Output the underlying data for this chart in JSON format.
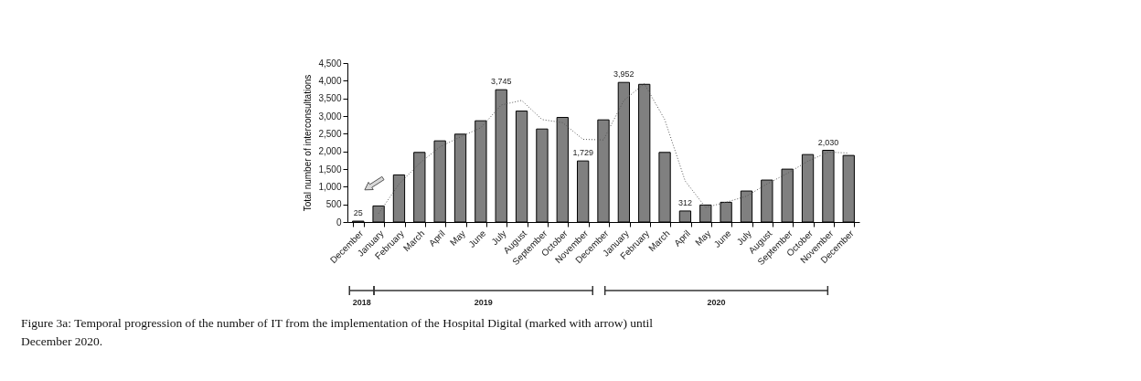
{
  "chart_data": {
    "type": "bar",
    "ylabel": "Total number of interconsultations",
    "categories": [
      "December",
      "January",
      "February",
      "March",
      "April",
      "May",
      "June",
      "July",
      "August",
      "September",
      "October",
      "November",
      "December",
      "January",
      "February",
      "March",
      "April",
      "May",
      "June",
      "July",
      "August",
      "September",
      "October",
      "November",
      "December"
    ],
    "values": [
      25,
      456,
      1334,
      1971,
      2298,
      2487,
      2866,
      3745,
      3141,
      2633,
      2960,
      1729,
      2892,
      3952,
      3898,
      1971,
      312,
      482,
      559,
      878,
      1188,
      1497,
      1910,
      2030,
      1885
    ],
    "value_labels": [
      "25",
      null,
      null,
      null,
      null,
      null,
      null,
      "3,745",
      null,
      null,
      null,
      "1,729",
      null,
      "3,952",
      null,
      null,
      "312",
      null,
      null,
      null,
      null,
      null,
      null,
      "2,030",
      null
    ],
    "color": "#808080",
    "series": [
      {
        "type": "line",
        "color": "#555555",
        "line_style": "dotted",
        "values": [
          null,
          241,
          1076,
          1661,
          2126,
          2410,
          2668,
          3313,
          3442,
          2900,
          2814,
          2341,
          2324,
          3442,
          3916,
          2900,
          1162,
          413,
          559,
          731,
          1076,
          1377,
          1721,
          1979,
          1953
        ]
      }
    ],
    "ylim": [
      0,
      4500
    ],
    "yticks": [
      0,
      500,
      {
        "value": 1000,
        "label": "1,000"
      },
      {
        "value": 1500,
        "label": "1,500"
      },
      {
        "value": 2000,
        "label": "2,000"
      },
      {
        "value": 2500,
        "label": "2,500"
      },
      {
        "value": 3000,
        "label": "3,000"
      },
      {
        "value": 3500,
        "label": "3,500"
      },
      {
        "value": 4000,
        "label": "4,000"
      },
      {
        "value": 4500,
        "label": "4,500"
      }
    ],
    "grid": false,
    "annotations": [
      "2018",
      "2019",
      "2020",
      "Figure 3a: Temporal  progression of the number of IT from the implementation of the Hospital Digital (marked with arrow) until December 2020."
    ]
  }
}
